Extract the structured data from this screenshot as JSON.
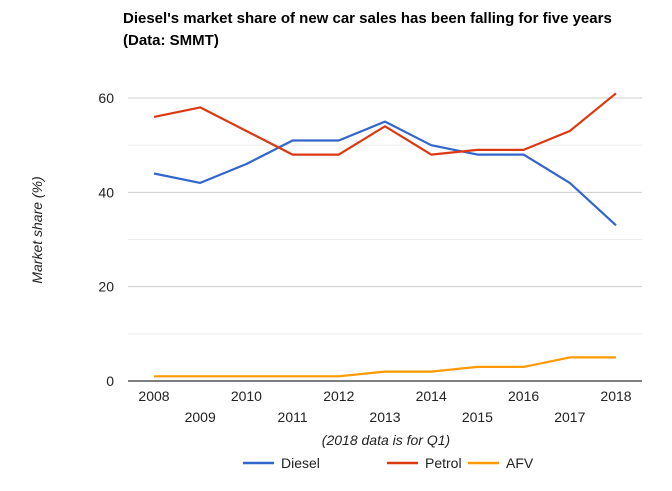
{
  "chart_data": {
    "type": "line",
    "title": "Diesel's market share of new car sales has been falling for five years (Data: SMMT)",
    "xlabel": "(2018 data is for Q1)",
    "ylabel": "Market share (%)",
    "x": [
      2008,
      2009,
      2010,
      2011,
      2012,
      2013,
      2014,
      2015,
      2016,
      2017,
      2018
    ],
    "ylim": [
      0,
      60
    ],
    "yticks": [
      0,
      20,
      40,
      60
    ],
    "grid": true,
    "legend_position": "bottom",
    "series": [
      {
        "name": "Diesel",
        "color": "#3366cc",
        "values": [
          44,
          42,
          46,
          51,
          51,
          55,
          50,
          48,
          48,
          42,
          33
        ]
      },
      {
        "name": "Petrol",
        "color": "#dc3912",
        "values": [
          56,
          58,
          53,
          48,
          48,
          54,
          48,
          49,
          49,
          53,
          61
        ]
      },
      {
        "name": "AFV",
        "color": "#ff9900",
        "values": [
          1,
          1,
          1,
          1,
          1,
          2,
          2,
          3,
          3,
          5,
          5
        ]
      }
    ]
  }
}
